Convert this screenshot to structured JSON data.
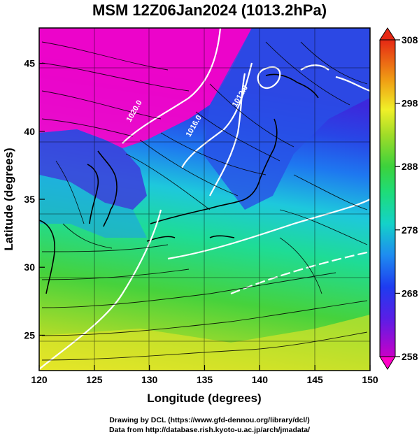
{
  "title": "MSM 12Z06Jan2024 (1013.2hPa)",
  "x_axis": {
    "label": "Longitude (degrees)",
    "ticks": [
      "120",
      "125",
      "130",
      "135",
      "140",
      "145",
      "150"
    ],
    "range": [
      120,
      150
    ]
  },
  "y_axis": {
    "label": "Latitude  (degrees)",
    "ticks": [
      "25",
      "30",
      "35",
      "40",
      "45"
    ],
    "range": [
      22.4,
      47.6
    ]
  },
  "colorbar": {
    "ticks": [
      "258",
      "268",
      "278",
      "288",
      "298",
      "308"
    ],
    "range": [
      258,
      308
    ],
    "colormap": "rainbow-magenta-to-red"
  },
  "isobars": [
    {
      "label": "1020.0",
      "lon": 128.8,
      "lat": 41.4
    },
    {
      "label": "1016.0",
      "lon": 134.2,
      "lat": 40.3
    },
    {
      "label": "1012.0",
      "lon": 138.4,
      "lat": 42.5
    }
  ],
  "credits": {
    "line1": "Drawing by DCL (https://www.gfd-dennou.org/library/dcl/)",
    "line2": "Data from http://database.rish.kyoto-u.ac.jp/arch/jmadata/"
  }
}
